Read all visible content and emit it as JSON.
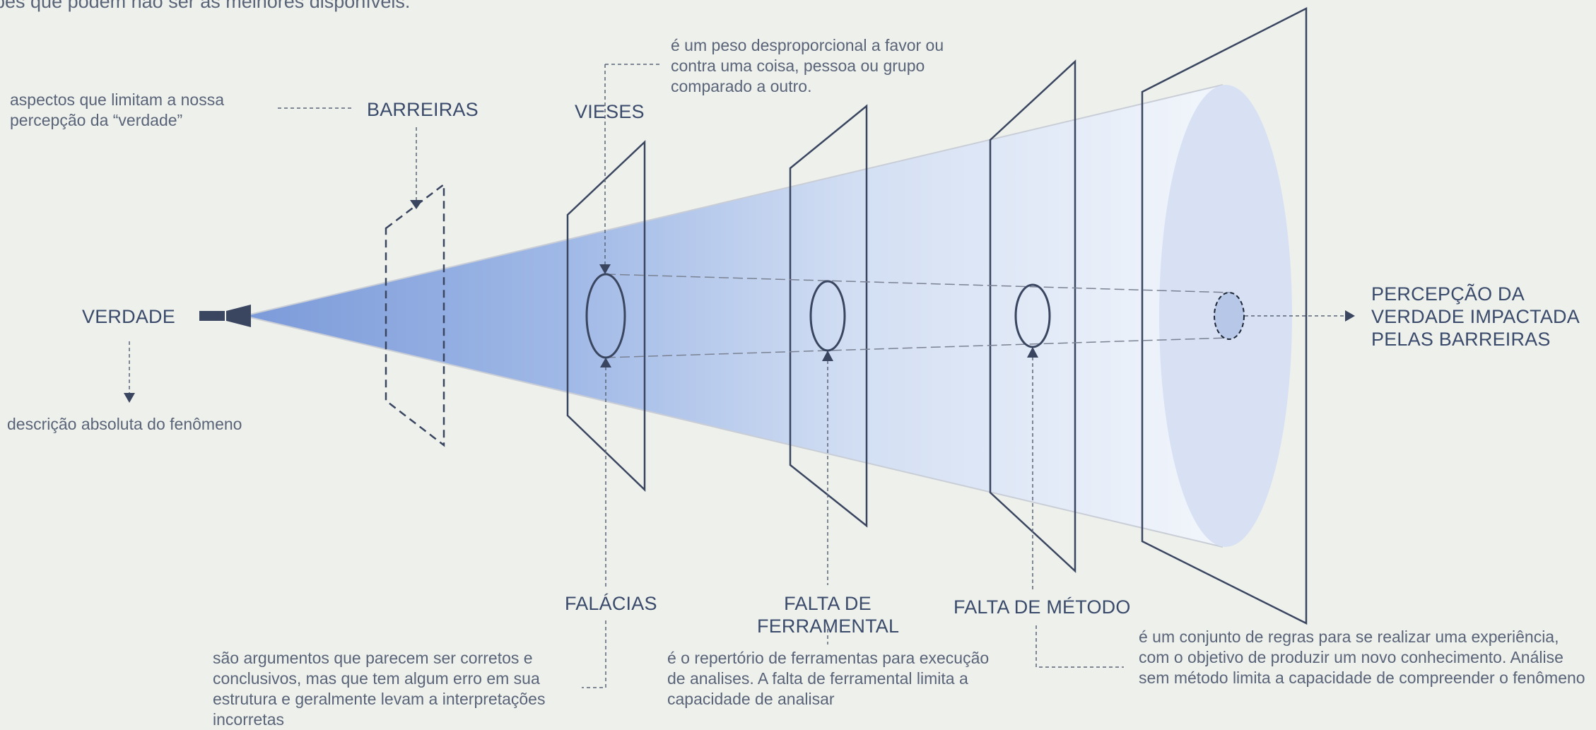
{
  "top_text": "bes que podem não ser as melhores disponíveis.",
  "truth": {
    "label": "VERDADE",
    "description": "descrição absoluta do fenômeno"
  },
  "barriers": {
    "label": "BARREIRAS",
    "description": "aspectos que limitam a nossa percepção da “verdade”"
  },
  "biases": {
    "label": "VIESES",
    "description": "é um peso desproporcional a favor ou contra uma coisa, pessoa ou grupo comparado a outro."
  },
  "fallacies": {
    "label": "FALÁCIAS",
    "description": "são argumentos que parecem ser corretos e conclusivos, mas que tem algum erro em sua estrutura e geralmente levam a interpretações incorretas"
  },
  "tooling": {
    "label": "FALTA DE FERRAMENTAL",
    "description": "é o repertório de ferramentas para execução de analises. A falta de ferramental limita a capacidade de analisar"
  },
  "method": {
    "label": "FALTA DE MÉTODO",
    "description": "é um conjunto de regras para se realizar uma experiência, com o objetivo de produzir um novo conhecimento. Análise sem método limita a capacidade de compreender o fenômeno"
  },
  "perception": {
    "label": "PERCEPÇÃO DA VERDADE IMPACTADA PELAS BARREIRAS"
  },
  "colors": {
    "line": "#3a4660",
    "beam_start": "#8eaae2",
    "beam_end": "#f2f5fb",
    "ellipse_fill": "#dbe4f4",
    "background": "#eef0ec"
  }
}
